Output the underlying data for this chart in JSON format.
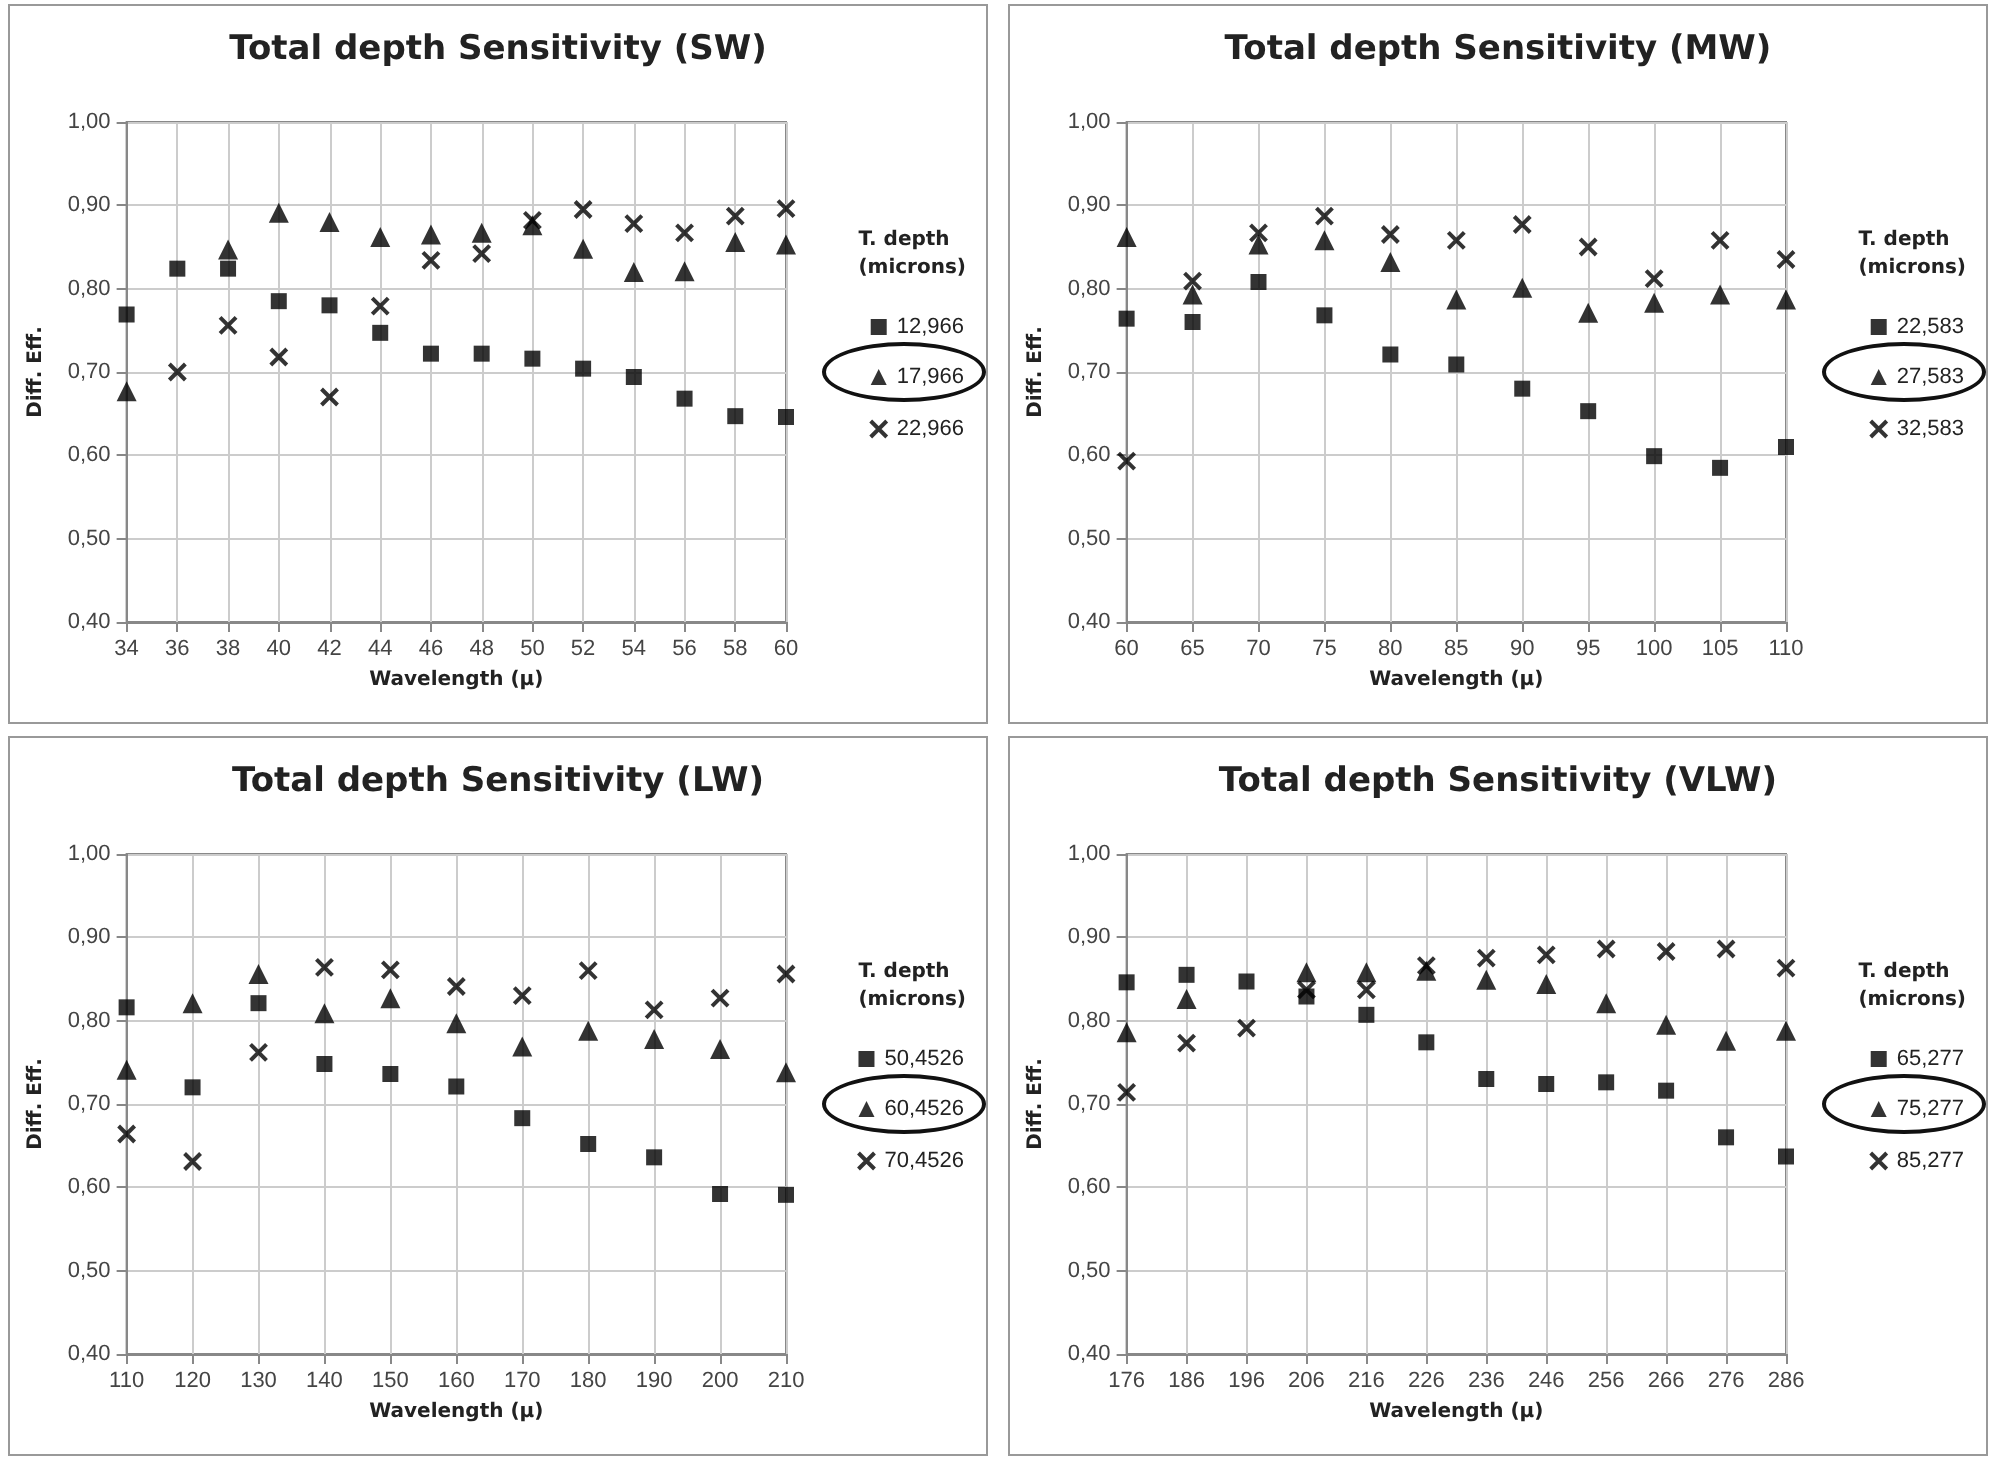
{
  "chart_data": [
    {
      "type": "scatter",
      "title": "Total depth Sensitivity (SW)",
      "xlabel": "Wavelength (μ)",
      "ylabel": "Diff. Eff.",
      "legend_title": "T. depth (microns)",
      "legend": "right",
      "grid": true,
      "x": [
        34,
        36,
        38,
        40,
        42,
        44,
        46,
        48,
        50,
        52,
        54,
        56,
        58,
        60
      ],
      "xlim": [
        34,
        60
      ],
      "xticks": [
        34,
        36,
        38,
        40,
        42,
        44,
        46,
        48,
        50,
        52,
        54,
        56,
        58,
        60
      ],
      "ylim": [
        0.4,
        1.0
      ],
      "yticks": [
        {
          "value": 0.4,
          "label": "0,40"
        },
        {
          "value": 0.5,
          "label": "0,50"
        },
        {
          "value": 0.6,
          "label": "0,60"
        },
        {
          "value": 0.7,
          "label": "0,70"
        },
        {
          "value": 0.8,
          "label": "0,80"
        },
        {
          "value": 0.9,
          "label": "0,90"
        },
        {
          "value": 1.0,
          "label": "1,00"
        }
      ],
      "series": [
        {
          "name": "12,966",
          "color": "#000000",
          "marker": "square",
          "values": [
            0.769,
            0.824,
            0.824,
            0.785,
            0.78,
            0.747,
            0.722,
            0.722,
            0.716,
            0.704,
            0.694,
            0.668,
            0.647,
            0.646
          ]
        },
        {
          "name": "17,966",
          "color": "#000000",
          "marker": "triangle",
          "values": [
            0.677,
            null,
            0.847,
            0.891,
            0.88,
            0.862,
            0.865,
            0.867,
            0.876,
            0.848,
            0.82,
            0.821,
            0.856,
            0.853
          ]
        },
        {
          "name": "22,966",
          "color": "#000000",
          "marker": "cross",
          "values": [
            null,
            0.7,
            0.756,
            0.718,
            0.67,
            0.779,
            0.834,
            0.842,
            0.882,
            0.895,
            0.878,
            0.867,
            0.887,
            0.896
          ]
        }
      ]
    },
    {
      "type": "scatter",
      "title": "Total depth Sensitivity (MW)",
      "xlabel": "Wavelength (μ)",
      "ylabel": "Diff. Eff.",
      "legend_title": "T. depth (microns)",
      "legend": "right",
      "grid": true,
      "x": [
        60,
        65,
        70,
        75,
        80,
        85,
        90,
        95,
        100,
        105,
        110
      ],
      "xlim": [
        60,
        110
      ],
      "xticks": [
        60,
        65,
        70,
        75,
        80,
        85,
        90,
        95,
        100,
        105,
        110
      ],
      "ylim": [
        0.4,
        1.0
      ],
      "yticks": [
        {
          "value": 0.4,
          "label": "0,40"
        },
        {
          "value": 0.5,
          "label": "0,50"
        },
        {
          "value": 0.6,
          "label": "0,60"
        },
        {
          "value": 0.7,
          "label": "0,70"
        },
        {
          "value": 0.8,
          "label": "0,80"
        },
        {
          "value": 0.9,
          "label": "0,90"
        },
        {
          "value": 1.0,
          "label": "1,00"
        }
      ],
      "series": [
        {
          "name": "22,583",
          "color": "#000000",
          "marker": "square",
          "values": [
            0.764,
            0.76,
            0.808,
            0.768,
            0.721,
            0.709,
            0.68,
            0.653,
            0.599,
            0.585,
            0.61
          ]
        },
        {
          "name": "27,583",
          "color": "#000000",
          "marker": "triangle",
          "values": [
            0.862,
            0.793,
            0.853,
            0.858,
            0.832,
            0.787,
            0.801,
            0.771,
            0.783,
            0.793,
            0.787
          ]
        },
        {
          "name": "32,583",
          "color": "#000000",
          "marker": "cross",
          "values": [
            0.593,
            0.809,
            0.867,
            0.887,
            0.865,
            0.858,
            0.877,
            0.85,
            0.812,
            0.858,
            0.835
          ]
        }
      ]
    },
    {
      "type": "scatter",
      "title": "Total depth Sensitivity (LW)",
      "xlabel": "Wavelength (μ)",
      "ylabel": "Diff. Eff.",
      "legend_title": "T. depth (microns)",
      "legend": "right",
      "grid": true,
      "x": [
        110,
        120,
        130,
        140,
        150,
        160,
        170,
        180,
        190,
        200,
        210
      ],
      "xlim": [
        110,
        210
      ],
      "xticks": [
        110,
        120,
        130,
        140,
        150,
        160,
        170,
        180,
        190,
        200,
        210
      ],
      "ylim": [
        0.4,
        1.0
      ],
      "yticks": [
        {
          "value": 0.4,
          "label": "0,40"
        },
        {
          "value": 0.5,
          "label": "0,50"
        },
        {
          "value": 0.6,
          "label": "0,60"
        },
        {
          "value": 0.7,
          "label": "0,70"
        },
        {
          "value": 0.8,
          "label": "0,80"
        },
        {
          "value": 0.9,
          "label": "0,90"
        },
        {
          "value": 1.0,
          "label": "1,00"
        }
      ],
      "series": [
        {
          "name": "50,4526",
          "color": "#000000",
          "marker": "square",
          "values": [
            0.816,
            0.72,
            0.821,
            0.748,
            0.736,
            0.721,
            0.683,
            0.652,
            0.636,
            0.592,
            0.591
          ]
        },
        {
          "name": "60,4526",
          "color": "#000000",
          "marker": "triangle",
          "values": [
            0.741,
            0.821,
            0.856,
            0.809,
            0.827,
            0.797,
            0.769,
            0.788,
            0.778,
            0.766,
            0.738
          ]
        },
        {
          "name": "70,4526",
          "color": "#000000",
          "marker": "cross",
          "values": [
            0.664,
            0.631,
            0.762,
            0.864,
            0.861,
            0.841,
            0.83,
            0.86,
            0.813,
            0.827,
            0.856
          ]
        }
      ]
    },
    {
      "type": "scatter",
      "title": "Total depth Sensitivity (VLW)",
      "xlabel": "Wavelength (μ)",
      "ylabel": "Diff. Eff.",
      "legend_title": "T. depth (microns)",
      "legend": "right",
      "grid": true,
      "x": [
        176,
        186,
        196,
        206,
        216,
        226,
        236,
        246,
        256,
        266,
        276,
        286
      ],
      "xlim": [
        176,
        286
      ],
      "xticks": [
        176,
        186,
        196,
        206,
        216,
        226,
        236,
        246,
        256,
        266,
        276,
        286
      ],
      "ylim": [
        0.4,
        1.0
      ],
      "yticks": [
        {
          "value": 0.4,
          "label": "0,40"
        },
        {
          "value": 0.5,
          "label": "0,50"
        },
        {
          "value": 0.6,
          "label": "0,60"
        },
        {
          "value": 0.7,
          "label": "0,70"
        },
        {
          "value": 0.8,
          "label": "0,80"
        },
        {
          "value": 0.9,
          "label": "0,90"
        },
        {
          "value": 1.0,
          "label": "1,00"
        }
      ],
      "series": [
        {
          "name": "65,277",
          "color": "#000000",
          "marker": "square",
          "values": [
            0.846,
            0.855,
            0.847,
            0.829,
            0.807,
            0.774,
            0.73,
            0.724,
            0.726,
            0.716,
            0.66,
            0.637
          ]
        },
        {
          "name": "75,277",
          "color": "#000000",
          "marker": "triangle",
          "values": [
            0.786,
            0.826,
            null,
            0.858,
            0.858,
            0.86,
            0.849,
            0.844,
            0.821,
            0.795,
            0.776,
            0.788
          ]
        },
        {
          "name": "85,277",
          "color": "#000000",
          "marker": "cross",
          "values": [
            0.714,
            0.773,
            0.791,
            0.837,
            0.837,
            0.866,
            0.875,
            0.879,
            0.886,
            0.883,
            0.886,
            0.863
          ]
        }
      ]
    }
  ]
}
